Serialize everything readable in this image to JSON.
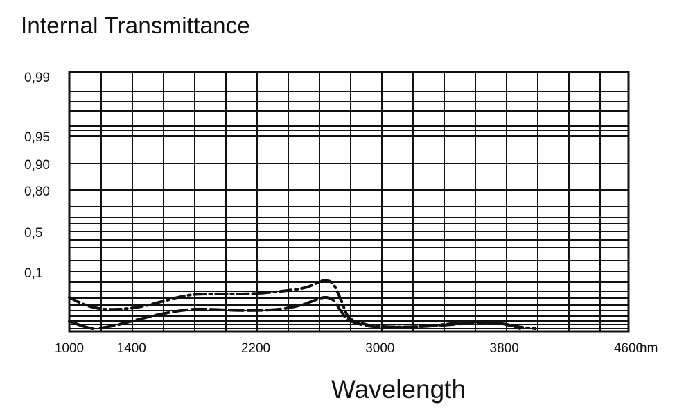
{
  "chart_data": {
    "type": "line",
    "title": "Internal Transmittance",
    "xlabel": "Wavelength",
    "ylabel": "",
    "x_unit": "nm",
    "xlim": [
      1000,
      4600
    ],
    "x_ticks": [
      1000,
      1400,
      2200,
      3000,
      3800,
      4600
    ],
    "y_tick_labels": [
      "0,99",
      "0,95",
      "0,90",
      "0,80",
      "0,5",
      "0,1"
    ],
    "y_scale": "nonlinear",
    "grid": true,
    "series": [
      {
        "line_style": "dash-dot",
        "color": "#111111",
        "x": [
          1000,
          1100,
          1200,
          1300,
          1400,
          1500,
          1600,
          1700,
          1800,
          1900,
          2000,
          2100,
          2200,
          2300,
          2400,
          2500,
          2550,
          2600,
          2650,
          2700,
          2750,
          2800,
          2900,
          3000,
          3200,
          3400,
          3600,
          3800,
          3900,
          4000
        ],
        "y": [
          0.055,
          0.042,
          0.035,
          0.034,
          0.036,
          0.041,
          0.048,
          0.055,
          0.06,
          0.061,
          0.061,
          0.061,
          0.062,
          0.064,
          0.067,
          0.071,
          0.075,
          0.081,
          0.085,
          0.078,
          0.05,
          0.02,
          0.008,
          0.004,
          0.003,
          0.007,
          0.012,
          0.008,
          0.003,
          0.0
        ]
      },
      {
        "line_style": "long-dash",
        "color": "#111111",
        "x": [
          1200,
          1300,
          1400,
          1500,
          1600,
          1700,
          1800,
          1900,
          2000,
          2100,
          2200,
          2300,
          2400,
          2500,
          2550,
          2600,
          2650,
          2700,
          2750,
          2800,
          2900,
          3000,
          3200,
          3400,
          3600,
          3700,
          3800,
          3900
        ],
        "y": [
          0.001,
          0.006,
          0.013,
          0.02,
          0.026,
          0.031,
          0.034,
          0.034,
          0.033,
          0.032,
          0.032,
          0.033,
          0.036,
          0.042,
          0.047,
          0.052,
          0.055,
          0.05,
          0.03,
          0.015,
          0.006,
          0.003,
          0.003,
          0.006,
          0.01,
          0.011,
          0.008,
          0.0
        ]
      },
      {
        "line_style": "solid",
        "color": "#111111",
        "x": [
          1000,
          1040,
          1080,
          1120,
          1150
        ],
        "y": [
          0.013,
          0.009,
          0.005,
          0.002,
          0.0
        ]
      }
    ]
  }
}
